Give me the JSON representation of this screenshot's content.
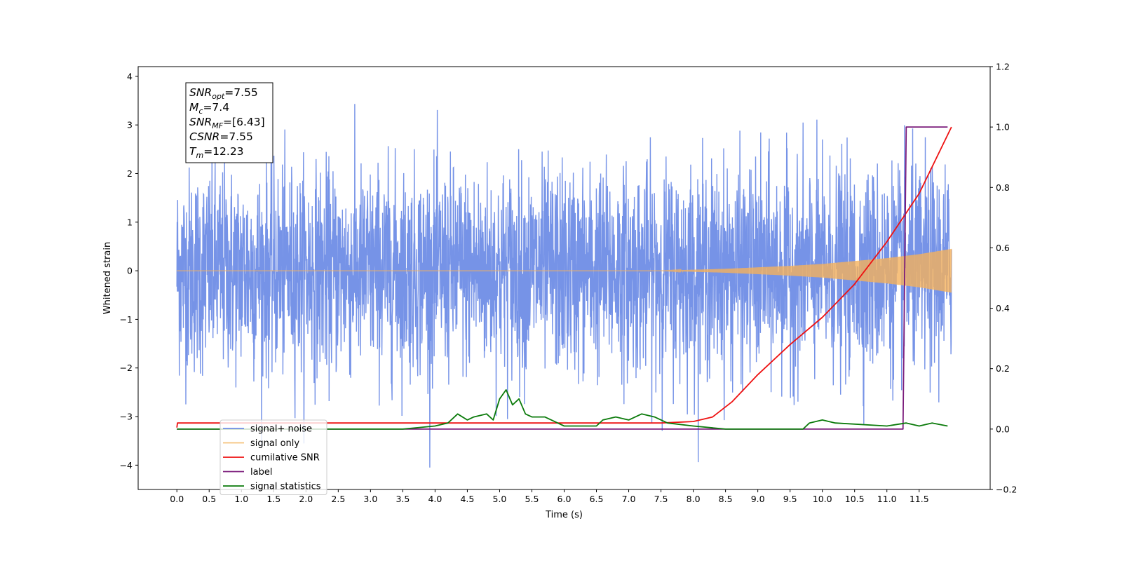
{
  "chart_data": {
    "type": "line",
    "xlabel": "Time (s)",
    "ylabel": "Whitened strain",
    "xlim": [
      -0.6,
      12.6
    ],
    "ylim": [
      -4.5,
      4.2
    ],
    "ylim_right": [
      -0.2,
      1.2
    ],
    "x_ticks": [
      0.0,
      0.5,
      1.0,
      1.5,
      2.0,
      2.5,
      3.0,
      3.5,
      4.0,
      4.5,
      5.0,
      5.5,
      6.0,
      6.5,
      7.0,
      7.5,
      8.0,
      8.5,
      9.0,
      9.5,
      10.0,
      10.5,
      11.0,
      11.5
    ],
    "x_tick_labels": [
      "0.0",
      "0.5",
      "1.0",
      "1.5",
      "2.0",
      "2.5",
      "3.0",
      "3.5",
      "4.0",
      "4.5",
      "5.0",
      "5.5",
      "6.0",
      "6.5",
      "7.0",
      "7.5",
      "8.0",
      "8.5",
      "9.0",
      "9.5",
      "10.0",
      "10.5",
      "11.0",
      "11.5"
    ],
    "y_ticks": [
      -4,
      -3,
      -2,
      -1,
      0,
      1,
      2,
      3,
      4
    ],
    "y_tick_labels": [
      "−4",
      "−3",
      "−2",
      "−1",
      "0",
      "1",
      "2",
      "3",
      "4"
    ],
    "y_right_ticks": [
      -0.2,
      0.0,
      0.2,
      0.4,
      0.6,
      0.8,
      1.0,
      1.2
    ],
    "y_right_tick_labels": [
      "−0.2",
      "0.0",
      "0.2",
      "0.4",
      "0.6",
      "0.8",
      "1.0",
      "1.2"
    ],
    "grid": false,
    "legend_position": "bottom-left",
    "annotation": {
      "lines": [
        {
          "main": "SNR",
          "sub": "opt",
          "rest": "=7.55"
        },
        {
          "main": "M",
          "sub": "c",
          "rest": "=7.4"
        },
        {
          "main": "SNR",
          "sub": "MF",
          "rest": "=[6.43]"
        },
        {
          "main": "CSNR",
          "sub": "",
          "rest": "=7.55"
        },
        {
          "main": "T",
          "sub": "m",
          "rest": "=12.23"
        }
      ]
    },
    "series": [
      {
        "name": "signal+ noise",
        "axis": "left",
        "color": "#6f8de6",
        "style": "noise",
        "x_range": [
          0.0,
          12.0
        ],
        "amplitude_typical": 2.2,
        "peaks": [
          3.8,
          -4.1
        ]
      },
      {
        "name": "signal only",
        "axis": "left",
        "color": "#f5b15c",
        "style": "chirp",
        "x_range": [
          0.0,
          12.0
        ],
        "envelope": {
          "x": [
            0.0,
            7.5,
            8.0,
            8.5,
            9.0,
            9.5,
            10.0,
            10.5,
            11.0,
            11.5,
            12.0
          ],
          "y": [
            0.0,
            0.0,
            0.02,
            0.04,
            0.07,
            0.1,
            0.14,
            0.2,
            0.26,
            0.34,
            0.45
          ]
        }
      },
      {
        "name": "cumilative SNR",
        "axis": "right",
        "color": "#ee1111",
        "style": "line",
        "x": [
          0.0,
          0.01,
          7.5,
          8.0,
          8.3,
          8.6,
          9.0,
          9.5,
          10.0,
          10.5,
          11.0,
          11.5,
          12.0
        ],
        "y": [
          0.005,
          0.02,
          0.02,
          0.025,
          0.04,
          0.09,
          0.18,
          0.28,
          0.37,
          0.48,
          0.62,
          0.78,
          1.0
        ]
      },
      {
        "name": "label",
        "axis": "right",
        "color": "#7a1a7a",
        "style": "line",
        "x": [
          0.0,
          11.25,
          11.3,
          11.94
        ],
        "y": [
          0.0,
          0.0,
          1.0,
          1.0
        ]
      },
      {
        "name": "signal statistics",
        "axis": "right",
        "color": "#0a7a0a",
        "style": "line",
        "x": [
          0.0,
          3.5,
          4.0,
          4.2,
          4.35,
          4.5,
          4.6,
          4.8,
          4.9,
          5.0,
          5.1,
          5.2,
          5.3,
          5.4,
          5.5,
          5.7,
          5.9,
          6.0,
          6.5,
          6.6,
          6.8,
          7.0,
          7.2,
          7.4,
          7.6,
          8.0,
          8.5,
          9.0,
          9.7,
          9.8,
          10.0,
          10.2,
          11.0,
          11.3,
          11.5,
          11.7,
          11.94
        ],
        "y": [
          0.0,
          0.0,
          0.01,
          0.02,
          0.05,
          0.03,
          0.04,
          0.05,
          0.03,
          0.1,
          0.13,
          0.08,
          0.1,
          0.05,
          0.04,
          0.04,
          0.02,
          0.01,
          0.01,
          0.03,
          0.04,
          0.03,
          0.05,
          0.04,
          0.02,
          0.01,
          0.0,
          0.0,
          0.0,
          0.02,
          0.03,
          0.02,
          0.01,
          0.02,
          0.01,
          0.02,
          0.01
        ]
      }
    ],
    "legend_entries": [
      {
        "label": "signal+ noise",
        "color": "#6f8de6"
      },
      {
        "label": "signal only",
        "color": "#f5c27a"
      },
      {
        "label": "cumilative SNR",
        "color": "#ee1111"
      },
      {
        "label": "label",
        "color": "#7a1a7a"
      },
      {
        "label": "signal statistics",
        "color": "#0a7a0a"
      }
    ]
  }
}
